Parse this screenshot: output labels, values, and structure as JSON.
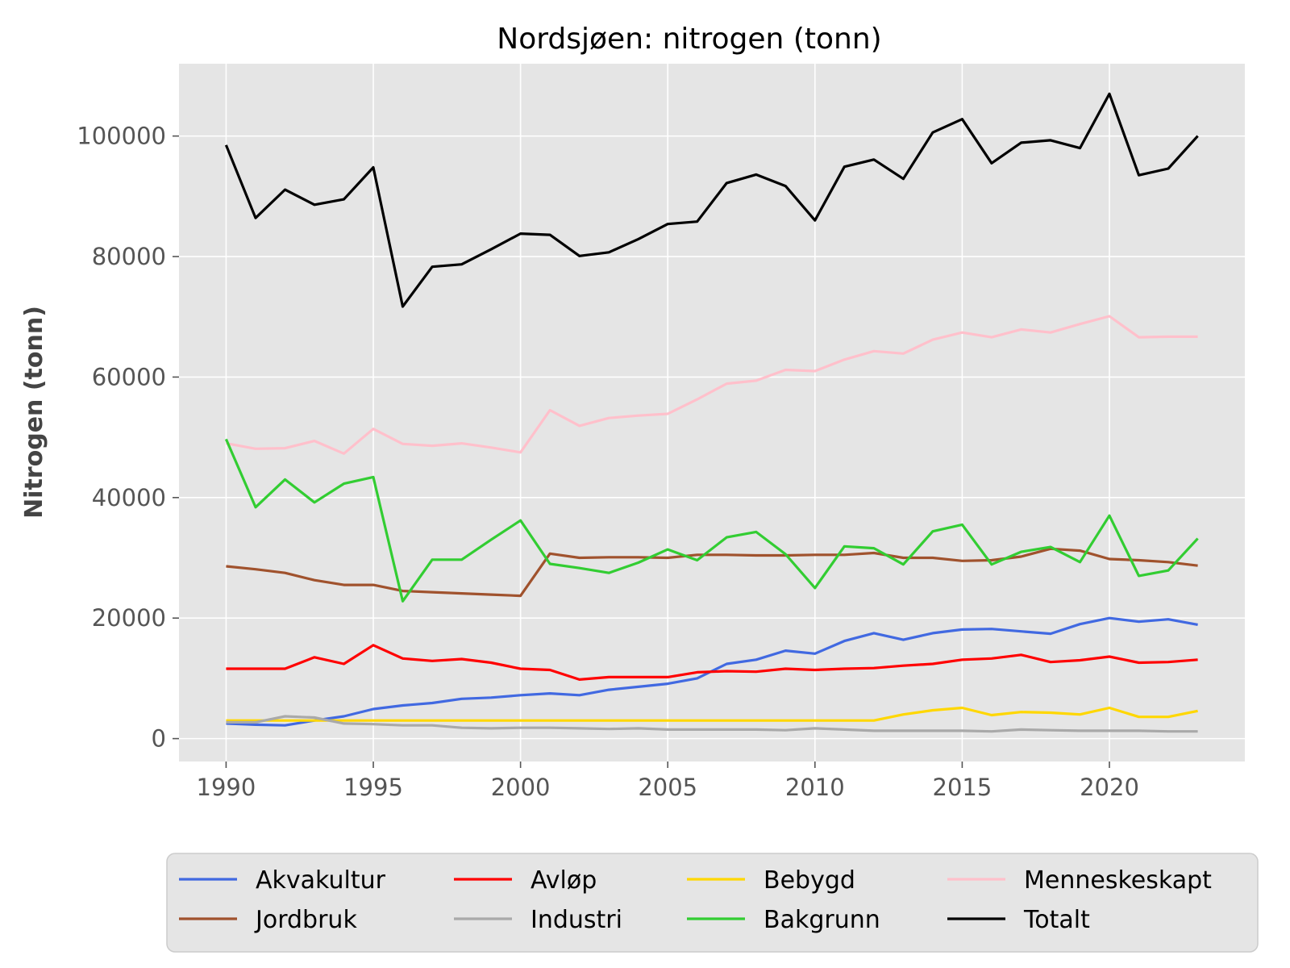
{
  "chart_data": {
    "type": "line",
    "title": "Nordsjøen: nitrogen (tonn)",
    "xlabel": "",
    "ylabel": "Nitrogen (tonn)",
    "xlim": [
      1988.4,
      2024.6
    ],
    "ylim": [
      -3800,
      112000
    ],
    "xticks": [
      1990,
      1995,
      2000,
      2005,
      2010,
      2015,
      2020
    ],
    "yticks": [
      0,
      20000,
      40000,
      60000,
      80000,
      100000
    ],
    "grid": true,
    "legend_position": "bottom",
    "background": "#e5e5e5",
    "x": [
      1990,
      1991,
      1992,
      1993,
      1994,
      1995,
      1996,
      1997,
      1998,
      1999,
      2000,
      2001,
      2002,
      2003,
      2004,
      2005,
      2006,
      2007,
      2008,
      2009,
      2010,
      2011,
      2012,
      2013,
      2014,
      2015,
      2016,
      2017,
      2018,
      2019,
      2020,
      2021,
      2022,
      2023
    ],
    "series": [
      {
        "name": "Akvakultur",
        "color": "#4169e1",
        "values": [
          2500,
          2300,
          2200,
          3000,
          3700,
          4900,
          5500,
          5900,
          6600,
          6800,
          7200,
          7500,
          7200,
          8100,
          8600,
          9100,
          10000,
          12400,
          13100,
          14600,
          14100,
          16200,
          17500,
          16400,
          17500,
          18100,
          18200,
          17800,
          17400,
          19000,
          20000,
          19400,
          19800,
          18900
        ]
      },
      {
        "name": "Avløp",
        "color": "#ff0000",
        "values": [
          11600,
          11600,
          11600,
          13500,
          12400,
          15500,
          13300,
          12900,
          13200,
          12600,
          11600,
          11400,
          9800,
          10200,
          10200,
          10200,
          11000,
          11200,
          11100,
          11600,
          11400,
          11600,
          11700,
          12100,
          12400,
          13100,
          13300,
          13900,
          12700,
          13000,
          13600,
          12600,
          12700,
          13100
        ]
      },
      {
        "name": "Bebygd",
        "color": "#ffd700",
        "values": [
          3000,
          3000,
          3000,
          3000,
          3000,
          3000,
          3000,
          3000,
          3000,
          3000,
          3000,
          3000,
          3000,
          3000,
          3000,
          3000,
          3000,
          3000,
          3000,
          3000,
          3000,
          3000,
          3000,
          4000,
          4700,
          5100,
          3900,
          4400,
          4300,
          4000,
          5100,
          3600,
          3600,
          4600
        ]
      },
      {
        "name": "Menneskeskapt",
        "color": "#ffc0cb",
        "values": [
          49000,
          48100,
          48200,
          49400,
          47300,
          51400,
          48900,
          48600,
          49000,
          48300,
          47500,
          54500,
          51900,
          53200,
          53600,
          53900,
          56300,
          58900,
          59400,
          61200,
          61000,
          62900,
          64300,
          63900,
          66200,
          67400,
          66600,
          67900,
          67400,
          68800,
          70100,
          66600,
          66700,
          66700
        ]
      },
      {
        "name": "Jordbruk",
        "color": "#a0522d",
        "values": [
          28600,
          28100,
          27500,
          26300,
          25500,
          25500,
          24500,
          24300,
          24100,
          23900,
          23700,
          30700,
          30000,
          30100,
          30100,
          30000,
          30500,
          30500,
          30400,
          30400,
          30500,
          30500,
          30800,
          30000,
          30000,
          29500,
          29600,
          30200,
          31500,
          31200,
          29800,
          29600,
          29300,
          28700
        ]
      },
      {
        "name": "Industri",
        "color": "#a9a9a9",
        "values": [
          2700,
          2700,
          3700,
          3500,
          2500,
          2400,
          2200,
          2200,
          1800,
          1700,
          1800,
          1800,
          1700,
          1600,
          1700,
          1500,
          1500,
          1500,
          1500,
          1400,
          1700,
          1500,
          1300,
          1300,
          1300,
          1300,
          1200,
          1500,
          1400,
          1300,
          1300,
          1300,
          1200,
          1200
        ]
      },
      {
        "name": "Bakgrunn",
        "color": "#32cd32",
        "values": [
          49700,
          38400,
          43000,
          39200,
          42300,
          43400,
          22800,
          29700,
          29700,
          33000,
          36200,
          29000,
          28300,
          27500,
          29200,
          31400,
          29600,
          33400,
          34300,
          30600,
          25000,
          31900,
          31600,
          28900,
          34400,
          35500,
          28900,
          31000,
          31800,
          29300,
          37000,
          27000,
          27900,
          33200
        ]
      },
      {
        "name": "Totalt",
        "color": "#000000",
        "values": [
          98500,
          86400,
          91100,
          88600,
          89500,
          94800,
          71700,
          78300,
          78700,
          81200,
          83800,
          83600,
          80100,
          80700,
          82900,
          85400,
          85800,
          92200,
          93600,
          91700,
          86000,
          94900,
          96100,
          92900,
          100600,
          102800,
          95500,
          98900,
          99300,
          98000,
          107000,
          93500,
          94600,
          100000
        ]
      }
    ],
    "legend_order": [
      "Akvakultur",
      "Avløp",
      "Bebygd",
      "Menneskeskapt",
      "Jordbruk",
      "Industri",
      "Bakgrunn",
      "Totalt"
    ]
  }
}
